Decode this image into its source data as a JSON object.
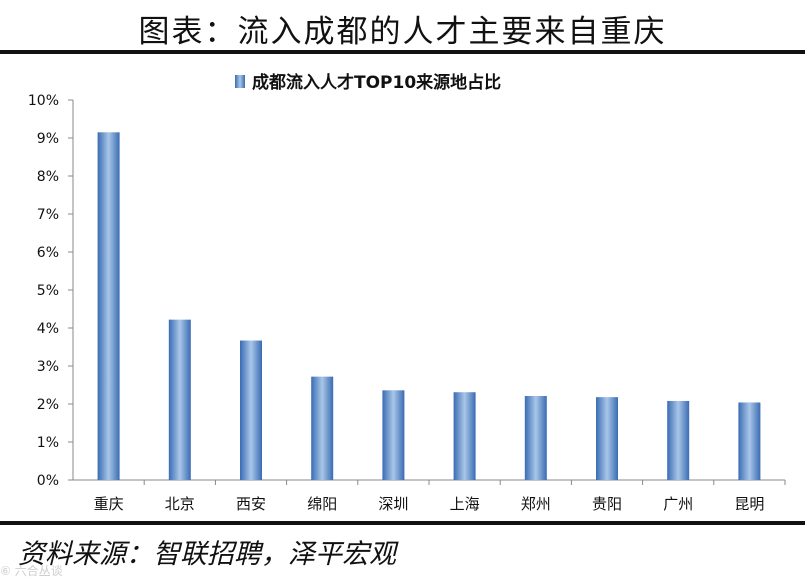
{
  "header": {
    "title": "图表：流入成都的人才主要来自重庆"
  },
  "footer": {
    "source": "资料来源：智联招聘，泽平宏观",
    "watermark": "⑥ 六合丛谈"
  },
  "colors": {
    "bar_dark": "#3a6cb3",
    "bar_light": "#a9c6e8",
    "axis": "#888888"
  },
  "chart_data": {
    "type": "bar",
    "title": "",
    "legend_position": "top-center",
    "grid": false,
    "categories": [
      "重庆",
      "北京",
      "西安",
      "绵阳",
      "深圳",
      "上海",
      "郑州",
      "贵阳",
      "广州",
      "昆明"
    ],
    "series": [
      {
        "name": "成都流入人才TOP10来源地占比",
        "values": [
          9.15,
          4.22,
          3.67,
          2.72,
          2.36,
          2.31,
          2.21,
          2.18,
          2.08,
          2.04
        ]
      }
    ],
    "ylim": [
      0,
      10
    ],
    "yticks": [
      "0%",
      "1%",
      "2%",
      "3%",
      "4%",
      "5%",
      "6%",
      "7%",
      "8%",
      "9%",
      "10%"
    ],
    "xlabel": "",
    "ylabel": ""
  }
}
